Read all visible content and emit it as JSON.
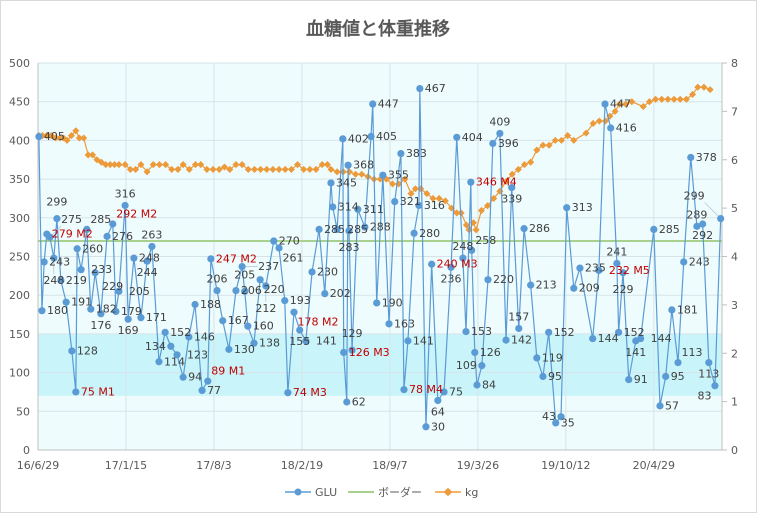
{
  "chart_data": {
    "type": "line",
    "title": "血糖値と体重推移",
    "x_unit": "days since 16/6/29",
    "x_range": [
      0,
      1555
    ],
    "x_ticks": [
      {
        "day": 0,
        "label": "16/6/29"
      },
      {
        "day": 200,
        "label": "17/1/15"
      },
      {
        "day": 400,
        "label": "17/8/3"
      },
      {
        "day": 600,
        "label": "18/2/19"
      },
      {
        "day": 800,
        "label": "18/9/7"
      },
      {
        "day": 1000,
        "label": "19/3/26"
      },
      {
        "day": 1200,
        "label": "19/10/12"
      },
      {
        "day": 1400,
        "label": "20/4/29"
      }
    ],
    "y_left": {
      "range": [
        0,
        500
      ],
      "ticks": [
        "0",
        "50",
        "100",
        "150",
        "200",
        "250",
        "300",
        "350",
        "400",
        "450",
        "500"
      ]
    },
    "y_right": {
      "range": [
        0,
        8
      ],
      "ticks": [
        "0",
        "1",
        "2",
        "3",
        "4",
        "5",
        "6",
        "7",
        "8"
      ]
    },
    "band": {
      "from": 70,
      "to": 150
    },
    "grid": true,
    "legend_position": "bottom",
    "colors": {
      "glu": "#5b9bd5",
      "border": "#a9d18e",
      "kg": "#ed9a3a",
      "plot_bg": "#eefcfd",
      "band": "#c9f5fa",
      "note": "#c00000"
    },
    "series": [
      {
        "name": "GLU",
        "axis": "left",
        "points": [
          [
            2,
            405,
            ""
          ],
          [
            9,
            180,
            ""
          ],
          [
            14,
            243,
            ""
          ],
          [
            20,
            279,
            "M2"
          ],
          [
            27,
            275,
            ""
          ],
          [
            36,
            248,
            ""
          ],
          [
            43,
            299,
            ""
          ],
          [
            52,
            219,
            ""
          ],
          [
            64,
            191,
            ""
          ],
          [
            77,
            128,
            ""
          ],
          [
            86,
            75,
            "M1"
          ],
          [
            89,
            260,
            ""
          ],
          [
            98,
            233,
            ""
          ],
          [
            111,
            285,
            ""
          ],
          [
            120,
            182,
            ""
          ],
          [
            130,
            229,
            ""
          ],
          [
            143,
            176,
            ""
          ],
          [
            157,
            276,
            ""
          ],
          [
            170,
            292,
            "M2"
          ],
          [
            177,
            179,
            ""
          ],
          [
            184,
            205,
            ""
          ],
          [
            198,
            316,
            ""
          ],
          [
            205,
            169,
            ""
          ],
          [
            218,
            248,
            ""
          ],
          [
            234,
            171,
            ""
          ],
          [
            248,
            244,
            ""
          ],
          [
            259,
            263,
            ""
          ],
          [
            275,
            114,
            ""
          ],
          [
            289,
            152,
            ""
          ],
          [
            302,
            134,
            ""
          ],
          [
            316,
            123,
            ""
          ],
          [
            330,
            94,
            ""
          ],
          [
            343,
            146,
            ""
          ],
          [
            357,
            188,
            ""
          ],
          [
            373,
            77,
            ""
          ],
          [
            386,
            89,
            "M1"
          ],
          [
            393,
            247,
            "M2"
          ],
          [
            407,
            206,
            ""
          ],
          [
            420,
            167,
            ""
          ],
          [
            434,
            130,
            ""
          ],
          [
            450,
            206,
            ""
          ],
          [
            464,
            237,
            ""
          ],
          [
            470,
            205,
            ""
          ],
          [
            477,
            160,
            ""
          ],
          [
            491,
            138,
            ""
          ],
          [
            505,
            220,
            ""
          ],
          [
            518,
            212,
            ""
          ],
          [
            536,
            270,
            ""
          ],
          [
            548,
            261,
            ""
          ],
          [
            561,
            193,
            ""
          ],
          [
            568,
            74,
            "M3"
          ],
          [
            582,
            178,
            "M2"
          ],
          [
            595,
            155,
            ""
          ],
          [
            609,
            141,
            ""
          ],
          [
            623,
            230,
            ""
          ],
          [
            639,
            285,
            ""
          ],
          [
            652,
            202,
            ""
          ],
          [
            666,
            345,
            ""
          ],
          [
            670,
            314,
            ""
          ],
          [
            680,
            285,
            ""
          ],
          [
            693,
            402,
            ""
          ],
          [
            695,
            126,
            "M3"
          ],
          [
            702,
            62,
            ""
          ],
          [
            705,
            368,
            ""
          ],
          [
            707,
            283,
            ""
          ],
          [
            714,
            129,
            ""
          ],
          [
            727,
            311,
            ""
          ],
          [
            743,
            288,
            ""
          ],
          [
            757,
            405,
            ""
          ],
          [
            761,
            447,
            ""
          ],
          [
            770,
            190,
            ""
          ],
          [
            784,
            355,
            ""
          ],
          [
            798,
            163,
            ""
          ],
          [
            811,
            321,
            ""
          ],
          [
            825,
            383,
            ""
          ],
          [
            832,
            78,
            "M4"
          ],
          [
            841,
            141,
            ""
          ],
          [
            855,
            280,
            ""
          ],
          [
            866,
            316,
            ""
          ],
          [
            868,
            467,
            ""
          ],
          [
            882,
            30,
            ""
          ],
          [
            895,
            240,
            "M3"
          ],
          [
            909,
            64,
            ""
          ],
          [
            923,
            75,
            ""
          ],
          [
            939,
            236,
            ""
          ],
          [
            952,
            404,
            ""
          ],
          [
            966,
            248,
            ""
          ],
          [
            973,
            153,
            ""
          ],
          [
            984,
            346,
            "M4"
          ],
          [
            986,
            258,
            ""
          ],
          [
            993,
            126,
            ""
          ],
          [
            998,
            84,
            ""
          ],
          [
            1009,
            109,
            ""
          ],
          [
            1023,
            220,
            ""
          ],
          [
            1034,
            396,
            ""
          ],
          [
            1050,
            409,
            ""
          ],
          [
            1064,
            142,
            ""
          ],
          [
            1077,
            339,
            ""
          ],
          [
            1093,
            157,
            ""
          ],
          [
            1105,
            286,
            ""
          ],
          [
            1120,
            213,
            ""
          ],
          [
            1134,
            119,
            ""
          ],
          [
            1148,
            95,
            ""
          ],
          [
            1161,
            152,
            ""
          ],
          [
            1177,
            35,
            ""
          ],
          [
            1189,
            43,
            ""
          ],
          [
            1202,
            313,
            ""
          ],
          [
            1218,
            209,
            ""
          ],
          [
            1232,
            235,
            ""
          ],
          [
            1261,
            144,
            ""
          ],
          [
            1275,
            232,
            "M5"
          ],
          [
            1289,
            447,
            ""
          ],
          [
            1302,
            416,
            ""
          ],
          [
            1316,
            241,
            ""
          ],
          [
            1320,
            152,
            ""
          ],
          [
            1330,
            229,
            ""
          ],
          [
            1343,
            91,
            ""
          ],
          [
            1359,
            141,
            ""
          ],
          [
            1370,
            144,
            ""
          ],
          [
            1400,
            285,
            ""
          ],
          [
            1414,
            57,
            ""
          ],
          [
            1427,
            95,
            ""
          ],
          [
            1441,
            181,
            ""
          ],
          [
            1455,
            113,
            ""
          ],
          [
            1468,
            243,
            ""
          ],
          [
            1484,
            378,
            ""
          ],
          [
            1498,
            289,
            ""
          ],
          [
            1511,
            292,
            ""
          ],
          [
            1525,
            113,
            ""
          ],
          [
            1539,
            83,
            ""
          ],
          [
            1552,
            299,
            ""
          ]
        ]
      },
      {
        "name": "ボーダー",
        "axis": "left",
        "value": 270
      },
      {
        "name": "kg",
        "axis": "right",
        "points": [
          [
            2,
            6.5
          ],
          [
            10,
            6.5
          ],
          [
            20,
            6.5
          ],
          [
            30,
            6.5
          ],
          [
            40,
            6.45
          ],
          [
            50,
            6.45
          ],
          [
            58,
            6.45
          ],
          [
            66,
            6.4
          ],
          [
            76,
            6.5
          ],
          [
            86,
            6.6
          ],
          [
            94,
            6.45
          ],
          [
            104,
            6.45
          ],
          [
            114,
            6.1
          ],
          [
            124,
            6.1
          ],
          [
            134,
            6.0
          ],
          [
            144,
            5.95
          ],
          [
            154,
            5.9
          ],
          [
            164,
            5.9
          ],
          [
            174,
            5.9
          ],
          [
            184,
            5.9
          ],
          [
            198,
            5.9
          ],
          [
            210,
            5.8
          ],
          [
            222,
            5.8
          ],
          [
            234,
            5.9
          ],
          [
            248,
            5.75
          ],
          [
            262,
            5.9
          ],
          [
            276,
            5.9
          ],
          [
            290,
            5.9
          ],
          [
            304,
            5.8
          ],
          [
            318,
            5.8
          ],
          [
            330,
            5.9
          ],
          [
            344,
            5.8
          ],
          [
            358,
            5.9
          ],
          [
            370,
            5.9
          ],
          [
            384,
            5.8
          ],
          [
            398,
            5.8
          ],
          [
            412,
            5.8
          ],
          [
            424,
            5.85
          ],
          [
            436,
            5.8
          ],
          [
            450,
            5.9
          ],
          [
            464,
            5.9
          ],
          [
            478,
            5.8
          ],
          [
            492,
            5.8
          ],
          [
            506,
            5.8
          ],
          [
            520,
            5.8
          ],
          [
            534,
            5.8
          ],
          [
            548,
            5.8
          ],
          [
            562,
            5.8
          ],
          [
            576,
            5.8
          ],
          [
            590,
            5.9
          ],
          [
            604,
            5.8
          ],
          [
            618,
            5.8
          ],
          [
            632,
            5.8
          ],
          [
            646,
            5.9
          ],
          [
            658,
            5.9
          ],
          [
            666,
            5.8
          ],
          [
            680,
            5.75
          ],
          [
            694,
            5.75
          ],
          [
            708,
            5.75
          ],
          [
            722,
            5.7
          ],
          [
            736,
            5.7
          ],
          [
            750,
            5.65
          ],
          [
            764,
            5.6
          ],
          [
            778,
            5.6
          ],
          [
            792,
            5.6
          ],
          [
            806,
            5.5
          ],
          [
            820,
            5.5
          ],
          [
            834,
            5.6
          ],
          [
            848,
            5.3
          ],
          [
            858,
            5.4
          ],
          [
            870,
            5.4
          ],
          [
            884,
            5.3
          ],
          [
            898,
            5.2
          ],
          [
            912,
            5.2
          ],
          [
            926,
            5.15
          ],
          [
            940,
            5.0
          ],
          [
            952,
            4.9
          ],
          [
            962,
            4.9
          ],
          [
            974,
            4.65
          ],
          [
            980,
            4.55
          ],
          [
            990,
            4.7
          ],
          [
            996,
            4.55
          ],
          [
            1008,
            4.95
          ],
          [
            1022,
            5.05
          ],
          [
            1036,
            5.2
          ],
          [
            1050,
            5.35
          ],
          [
            1064,
            5.55
          ],
          [
            1078,
            5.7
          ],
          [
            1092,
            5.8
          ],
          [
            1106,
            5.9
          ],
          [
            1120,
            5.95
          ],
          [
            1134,
            6.2
          ],
          [
            1148,
            6.3
          ],
          [
            1162,
            6.3
          ],
          [
            1176,
            6.4
          ],
          [
            1190,
            6.4
          ],
          [
            1204,
            6.5
          ],
          [
            1218,
            6.4
          ],
          [
            1246,
            6.55
          ],
          [
            1262,
            6.75
          ],
          [
            1276,
            6.8
          ],
          [
            1290,
            6.8
          ],
          [
            1300,
            6.9
          ],
          [
            1312,
            7.0
          ],
          [
            1322,
            7.15
          ],
          [
            1336,
            7.15
          ],
          [
            1350,
            7.2
          ],
          [
            1376,
            7.1
          ],
          [
            1390,
            7.2
          ],
          [
            1404,
            7.25
          ],
          [
            1418,
            7.25
          ],
          [
            1432,
            7.25
          ],
          [
            1446,
            7.25
          ],
          [
            1460,
            7.25
          ],
          [
            1474,
            7.25
          ],
          [
            1488,
            7.35
          ],
          [
            1500,
            7.5
          ],
          [
            1514,
            7.5
          ],
          [
            1528,
            7.45
          ]
        ]
      }
    ],
    "legend": [
      "GLU",
      "ボーダー",
      "kg"
    ]
  }
}
